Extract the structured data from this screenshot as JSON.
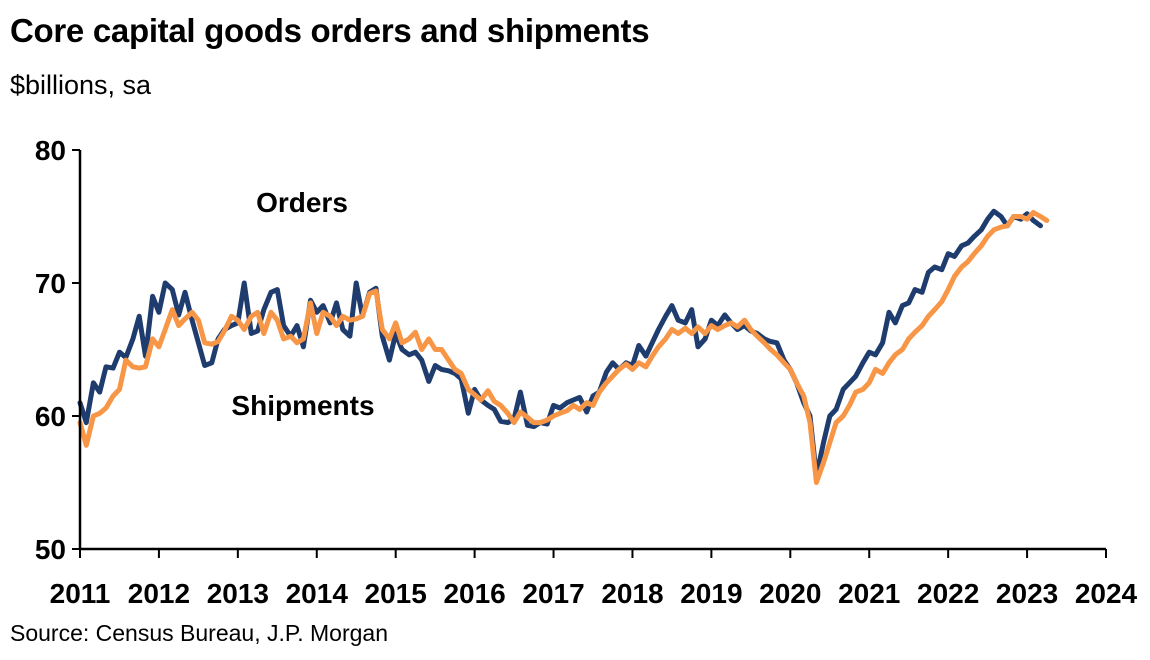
{
  "chart_data": {
    "type": "line",
    "title": "Core capital goods orders and shipments",
    "subtitle": "$billions, sa",
    "source": "Source: Census Bureau, J.P. Morgan",
    "xlabel": "",
    "ylabel": "",
    "xlim": [
      2011,
      2024
    ],
    "ylim": [
      50,
      80
    ],
    "yticks": [
      50,
      60,
      70,
      80
    ],
    "xticks": [
      "2011",
      "2012",
      "2013",
      "2014",
      "2015",
      "2016",
      "2017",
      "2018",
      "2019",
      "2020",
      "2021",
      "2022",
      "2023",
      "2024"
    ],
    "grid": false,
    "series": [
      {
        "name": "Orders",
        "color": "#1f3c6e",
        "points": [
          [
            2011.0,
            61.0
          ],
          [
            2011.08,
            59.5
          ],
          [
            2011.17,
            62.5
          ],
          [
            2011.25,
            61.8
          ],
          [
            2011.33,
            63.7
          ],
          [
            2011.42,
            63.6
          ],
          [
            2011.5,
            64.8
          ],
          [
            2011.58,
            64.4
          ],
          [
            2011.67,
            65.8
          ],
          [
            2011.75,
            67.5
          ],
          [
            2011.83,
            64.5
          ],
          [
            2011.92,
            69.0
          ],
          [
            2012.0,
            67.8
          ],
          [
            2012.08,
            70.0
          ],
          [
            2012.17,
            69.5
          ],
          [
            2012.25,
            67.6
          ],
          [
            2012.33,
            69.3
          ],
          [
            2012.42,
            67.2
          ],
          [
            2012.5,
            65.5
          ],
          [
            2012.58,
            63.8
          ],
          [
            2012.67,
            64.0
          ],
          [
            2012.75,
            65.8
          ],
          [
            2012.83,
            66.5
          ],
          [
            2012.92,
            66.8
          ],
          [
            2013.0,
            67.0
          ],
          [
            2013.08,
            70.0
          ],
          [
            2013.17,
            66.2
          ],
          [
            2013.25,
            66.4
          ],
          [
            2013.33,
            68.0
          ],
          [
            2013.42,
            69.3
          ],
          [
            2013.5,
            69.5
          ],
          [
            2013.58,
            66.8
          ],
          [
            2013.67,
            66.0
          ],
          [
            2013.75,
            66.8
          ],
          [
            2013.83,
            65.2
          ],
          [
            2013.92,
            68.7
          ],
          [
            2014.0,
            67.8
          ],
          [
            2014.08,
            68.3
          ],
          [
            2014.17,
            67.0
          ],
          [
            2014.25,
            68.5
          ],
          [
            2014.33,
            66.5
          ],
          [
            2014.42,
            66.0
          ],
          [
            2014.5,
            70.0
          ],
          [
            2014.58,
            67.5
          ],
          [
            2014.67,
            69.3
          ],
          [
            2014.75,
            69.6
          ],
          [
            2014.83,
            66.0
          ],
          [
            2014.92,
            64.2
          ],
          [
            2015.0,
            66.2
          ],
          [
            2015.08,
            65.0
          ],
          [
            2015.17,
            64.6
          ],
          [
            2015.25,
            64.8
          ],
          [
            2015.33,
            64.2
          ],
          [
            2015.42,
            62.6
          ],
          [
            2015.5,
            63.8
          ],
          [
            2015.58,
            63.5
          ],
          [
            2015.67,
            63.4
          ],
          [
            2015.75,
            63.2
          ],
          [
            2015.83,
            62.8
          ],
          [
            2015.92,
            60.2
          ],
          [
            2016.0,
            62.0
          ],
          [
            2016.08,
            61.2
          ],
          [
            2016.17,
            60.8
          ],
          [
            2016.25,
            60.5
          ],
          [
            2016.33,
            59.6
          ],
          [
            2016.42,
            59.5
          ],
          [
            2016.5,
            59.8
          ],
          [
            2016.58,
            61.8
          ],
          [
            2016.67,
            59.3
          ],
          [
            2016.75,
            59.2
          ],
          [
            2016.83,
            59.5
          ],
          [
            2016.92,
            59.4
          ],
          [
            2017.0,
            60.8
          ],
          [
            2017.08,
            60.6
          ],
          [
            2017.17,
            61.0
          ],
          [
            2017.25,
            61.2
          ],
          [
            2017.33,
            61.4
          ],
          [
            2017.42,
            60.3
          ],
          [
            2017.5,
            61.5
          ],
          [
            2017.58,
            61.8
          ],
          [
            2017.67,
            63.3
          ],
          [
            2017.75,
            64.0
          ],
          [
            2017.83,
            63.5
          ],
          [
            2017.92,
            64.0
          ],
          [
            2018.0,
            63.8
          ],
          [
            2018.08,
            65.3
          ],
          [
            2018.17,
            64.5
          ],
          [
            2018.25,
            65.5
          ],
          [
            2018.33,
            66.5
          ],
          [
            2018.42,
            67.5
          ],
          [
            2018.5,
            68.3
          ],
          [
            2018.58,
            67.2
          ],
          [
            2018.67,
            67.0
          ],
          [
            2018.75,
            68.0
          ],
          [
            2018.83,
            65.2
          ],
          [
            2018.92,
            65.8
          ],
          [
            2019.0,
            67.2
          ],
          [
            2019.08,
            66.8
          ],
          [
            2019.17,
            67.6
          ],
          [
            2019.25,
            67.0
          ],
          [
            2019.33,
            66.5
          ],
          [
            2019.42,
            66.8
          ],
          [
            2019.5,
            66.4
          ],
          [
            2019.58,
            66.2
          ],
          [
            2019.67,
            65.8
          ],
          [
            2019.75,
            65.6
          ],
          [
            2019.83,
            65.5
          ],
          [
            2019.92,
            64.2
          ],
          [
            2020.0,
            63.5
          ],
          [
            2020.08,
            62.5
          ],
          [
            2020.17,
            61.0
          ],
          [
            2020.25,
            60.0
          ],
          [
            2020.33,
            55.5
          ],
          [
            2020.42,
            58.0
          ],
          [
            2020.5,
            60.0
          ],
          [
            2020.58,
            60.5
          ],
          [
            2020.67,
            62.0
          ],
          [
            2020.75,
            62.5
          ],
          [
            2020.83,
            63.0
          ],
          [
            2020.92,
            64.0
          ],
          [
            2021.0,
            64.8
          ],
          [
            2021.08,
            64.6
          ],
          [
            2021.17,
            65.5
          ],
          [
            2021.25,
            67.8
          ],
          [
            2021.33,
            67.0
          ],
          [
            2021.42,
            68.3
          ],
          [
            2021.5,
            68.5
          ],
          [
            2021.58,
            69.5
          ],
          [
            2021.67,
            69.3
          ],
          [
            2021.75,
            70.8
          ],
          [
            2021.83,
            71.2
          ],
          [
            2021.92,
            71.0
          ],
          [
            2022.0,
            72.2
          ],
          [
            2022.08,
            72.0
          ],
          [
            2022.17,
            72.8
          ],
          [
            2022.25,
            73.0
          ],
          [
            2022.33,
            73.5
          ],
          [
            2022.42,
            74.0
          ],
          [
            2022.5,
            74.8
          ],
          [
            2022.58,
            75.4
          ],
          [
            2022.67,
            75.0
          ],
          [
            2022.75,
            74.3
          ],
          [
            2022.83,
            75.0
          ],
          [
            2022.92,
            74.8
          ],
          [
            2023.0,
            75.2
          ],
          [
            2023.08,
            74.7
          ],
          [
            2023.17,
            74.3
          ]
        ]
      },
      {
        "name": "Shipments",
        "color": "#f79646",
        "points": [
          [
            2011.0,
            59.5
          ],
          [
            2011.08,
            57.8
          ],
          [
            2011.17,
            60.0
          ],
          [
            2011.25,
            60.2
          ],
          [
            2011.33,
            60.6
          ],
          [
            2011.42,
            61.5
          ],
          [
            2011.5,
            62.0
          ],
          [
            2011.58,
            64.2
          ],
          [
            2011.67,
            63.7
          ],
          [
            2011.75,
            63.6
          ],
          [
            2011.83,
            63.7
          ],
          [
            2011.92,
            65.8
          ],
          [
            2012.0,
            65.2
          ],
          [
            2012.08,
            66.5
          ],
          [
            2012.17,
            68.0
          ],
          [
            2012.25,
            66.8
          ],
          [
            2012.33,
            67.3
          ],
          [
            2012.42,
            67.8
          ],
          [
            2012.5,
            67.2
          ],
          [
            2012.58,
            65.5
          ],
          [
            2012.67,
            65.4
          ],
          [
            2012.75,
            65.6
          ],
          [
            2012.83,
            66.4
          ],
          [
            2012.92,
            67.5
          ],
          [
            2013.0,
            67.2
          ],
          [
            2013.08,
            66.5
          ],
          [
            2013.17,
            67.5
          ],
          [
            2013.25,
            67.8
          ],
          [
            2013.33,
            66.2
          ],
          [
            2013.42,
            67.8
          ],
          [
            2013.5,
            67.2
          ],
          [
            2013.58,
            65.8
          ],
          [
            2013.67,
            66.0
          ],
          [
            2013.75,
            65.5
          ],
          [
            2013.83,
            65.8
          ],
          [
            2013.92,
            68.5
          ],
          [
            2014.0,
            66.2
          ],
          [
            2014.08,
            67.8
          ],
          [
            2014.17,
            67.5
          ],
          [
            2014.25,
            66.8
          ],
          [
            2014.33,
            67.5
          ],
          [
            2014.42,
            67.2
          ],
          [
            2014.5,
            67.3
          ],
          [
            2014.58,
            67.5
          ],
          [
            2014.67,
            69.2
          ],
          [
            2014.75,
            69.4
          ],
          [
            2014.83,
            66.5
          ],
          [
            2014.92,
            65.8
          ],
          [
            2015.0,
            67.0
          ],
          [
            2015.08,
            65.5
          ],
          [
            2015.17,
            65.8
          ],
          [
            2015.25,
            66.3
          ],
          [
            2015.33,
            65.0
          ],
          [
            2015.42,
            65.8
          ],
          [
            2015.5,
            65.0
          ],
          [
            2015.58,
            65.0
          ],
          [
            2015.67,
            64.2
          ],
          [
            2015.75,
            63.5
          ],
          [
            2015.83,
            63.2
          ],
          [
            2015.92,
            62.0
          ],
          [
            2016.0,
            61.6
          ],
          [
            2016.08,
            61.2
          ],
          [
            2016.17,
            61.9
          ],
          [
            2016.25,
            61.1
          ],
          [
            2016.33,
            60.8
          ],
          [
            2016.42,
            60.2
          ],
          [
            2016.5,
            59.5
          ],
          [
            2016.58,
            60.3
          ],
          [
            2016.67,
            59.9
          ],
          [
            2016.75,
            59.5
          ],
          [
            2016.83,
            59.5
          ],
          [
            2016.92,
            59.7
          ],
          [
            2017.0,
            60.0
          ],
          [
            2017.08,
            60.2
          ],
          [
            2017.17,
            60.4
          ],
          [
            2017.25,
            60.8
          ],
          [
            2017.33,
            60.5
          ],
          [
            2017.42,
            61.0
          ],
          [
            2017.5,
            60.8
          ],
          [
            2017.58,
            61.8
          ],
          [
            2017.67,
            62.5
          ],
          [
            2017.75,
            63.0
          ],
          [
            2017.83,
            63.5
          ],
          [
            2017.92,
            63.9
          ],
          [
            2018.0,
            63.5
          ],
          [
            2018.08,
            64.0
          ],
          [
            2018.17,
            63.7
          ],
          [
            2018.25,
            64.5
          ],
          [
            2018.33,
            65.2
          ],
          [
            2018.42,
            65.8
          ],
          [
            2018.5,
            66.5
          ],
          [
            2018.58,
            66.2
          ],
          [
            2018.67,
            66.6
          ],
          [
            2018.75,
            66.2
          ],
          [
            2018.83,
            66.7
          ],
          [
            2018.92,
            66.2
          ],
          [
            2019.0,
            66.8
          ],
          [
            2019.08,
            66.5
          ],
          [
            2019.17,
            66.8
          ],
          [
            2019.25,
            67.0
          ],
          [
            2019.33,
            66.7
          ],
          [
            2019.42,
            67.2
          ],
          [
            2019.5,
            66.5
          ],
          [
            2019.58,
            66.0
          ],
          [
            2019.67,
            65.5
          ],
          [
            2019.75,
            65.0
          ],
          [
            2019.83,
            64.6
          ],
          [
            2019.92,
            64.0
          ],
          [
            2020.0,
            63.5
          ],
          [
            2020.08,
            62.5
          ],
          [
            2020.17,
            61.5
          ],
          [
            2020.25,
            59.5
          ],
          [
            2020.33,
            55.0
          ],
          [
            2020.42,
            56.5
          ],
          [
            2020.5,
            58.0
          ],
          [
            2020.58,
            59.5
          ],
          [
            2020.67,
            60.0
          ],
          [
            2020.75,
            60.8
          ],
          [
            2020.83,
            61.8
          ],
          [
            2020.92,
            62.0
          ],
          [
            2021.0,
            62.5
          ],
          [
            2021.08,
            63.5
          ],
          [
            2021.17,
            63.2
          ],
          [
            2021.25,
            64.0
          ],
          [
            2021.33,
            64.6
          ],
          [
            2021.42,
            65.0
          ],
          [
            2021.5,
            65.8
          ],
          [
            2021.58,
            66.3
          ],
          [
            2021.67,
            66.8
          ],
          [
            2021.75,
            67.5
          ],
          [
            2021.83,
            68.0
          ],
          [
            2021.92,
            68.6
          ],
          [
            2022.0,
            69.5
          ],
          [
            2022.08,
            70.5
          ],
          [
            2022.17,
            71.2
          ],
          [
            2022.25,
            71.6
          ],
          [
            2022.33,
            72.2
          ],
          [
            2022.42,
            72.8
          ],
          [
            2022.5,
            73.5
          ],
          [
            2022.58,
            74.0
          ],
          [
            2022.67,
            74.2
          ],
          [
            2022.75,
            74.3
          ],
          [
            2022.83,
            75.0
          ],
          [
            2022.92,
            75.0
          ],
          [
            2023.0,
            74.8
          ],
          [
            2023.08,
            75.3
          ],
          [
            2023.17,
            75.0
          ],
          [
            2023.25,
            74.7
          ]
        ]
      }
    ],
    "annotations": [
      {
        "text": "Orders",
        "series": "Orders"
      },
      {
        "text": "Shipments",
        "series": "Shipments"
      }
    ]
  }
}
